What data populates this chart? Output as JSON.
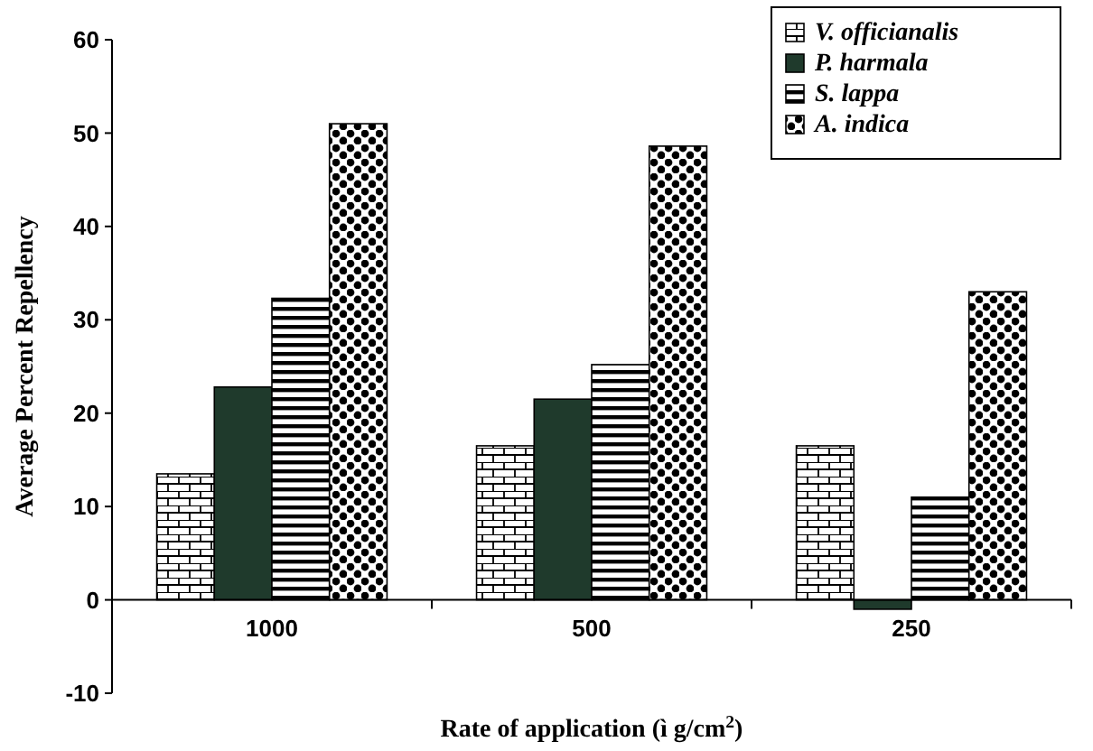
{
  "chart_data": {
    "type": "bar",
    "xlabel": "Rate of application  (ì g/cm$^{2}$)",
    "ylabel": "Average Percent Repellency",
    "categories": [
      "1000",
      "500",
      "250"
    ],
    "series": [
      {
        "name": "V.  officianalis",
        "color": "#000000",
        "values": [
          13.5,
          16.5,
          16.5
        ]
      },
      {
        "name": "P. harmala",
        "color": "#1f3a2c",
        "values": [
          22.8,
          21.5,
          -1
        ]
      },
      {
        "name": "S. lappa",
        "color": "#000000",
        "values": [
          32.3,
          25.2,
          11
        ]
      },
      {
        "name": "A. indica",
        "color": "#000000",
        "values": [
          51,
          48.6,
          33
        ]
      }
    ],
    "ylim": [
      -10,
      60
    ],
    "yticks": [
      -10,
      0,
      10,
      20,
      30,
      40,
      50,
      60
    ],
    "grid": false,
    "legend": "top right"
  }
}
